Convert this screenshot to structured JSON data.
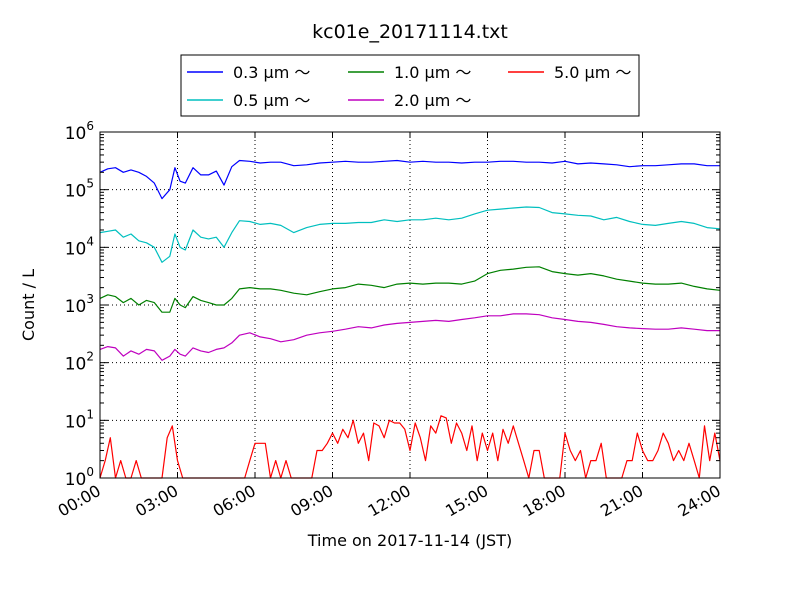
{
  "chart_data": {
    "type": "line",
    "title": "kc01e_20171114.txt",
    "xlabel": "Time on 2017-11-14 (JST)",
    "ylabel": "Count / L",
    "xlim": [
      0,
      24
    ],
    "ylim": [
      1,
      1000000
    ],
    "yscale": "log",
    "grid": true,
    "legend_position": "top, outside plot",
    "x_tick_labels": [
      "00:00",
      "03:00",
      "06:00",
      "09:00",
      "12:00",
      "15:00",
      "18:00",
      "21:00",
      "24:00"
    ],
    "y_tick_labels": [
      {
        "base": "10",
        "exp": "0"
      },
      {
        "base": "10",
        "exp": "1"
      },
      {
        "base": "10",
        "exp": "2"
      },
      {
        "base": "10",
        "exp": "3"
      },
      {
        "base": "10",
        "exp": "4"
      },
      {
        "base": "10",
        "exp": "5"
      },
      {
        "base": "10",
        "exp": "6"
      }
    ],
    "series": [
      {
        "name": "0.3 μm ～",
        "color": "#0000ff",
        "x": [
          0.0,
          0.3,
          0.6,
          0.9,
          1.2,
          1.5,
          1.8,
          2.1,
          2.4,
          2.7,
          2.9,
          3.1,
          3.3,
          3.6,
          3.9,
          4.2,
          4.5,
          4.8,
          5.1,
          5.4,
          5.8,
          6.2,
          6.6,
          7.0,
          7.5,
          8.0,
          8.5,
          9.0,
          9.5,
          10.0,
          10.5,
          11.0,
          11.5,
          12.0,
          12.5,
          13.0,
          13.5,
          14.0,
          14.5,
          15.0,
          15.5,
          16.0,
          16.5,
          17.0,
          17.5,
          18.0,
          18.5,
          19.0,
          19.5,
          20.0,
          20.5,
          21.0,
          21.5,
          22.0,
          22.5,
          23.0,
          23.5,
          24.0
        ],
        "y": [
          200000,
          230000,
          240000,
          200000,
          220000,
          200000,
          170000,
          130000,
          70000,
          100000,
          240000,
          140000,
          130000,
          240000,
          180000,
          180000,
          210000,
          120000,
          250000,
          320000,
          310000,
          290000,
          300000,
          300000,
          260000,
          270000,
          290000,
          300000,
          310000,
          300000,
          300000,
          310000,
          320000,
          300000,
          310000,
          300000,
          300000,
          290000,
          300000,
          300000,
          310000,
          310000,
          300000,
          300000,
          290000,
          310000,
          280000,
          290000,
          280000,
          270000,
          250000,
          260000,
          260000,
          270000,
          280000,
          280000,
          260000,
          260000
        ]
      },
      {
        "name": "0.5 μm ～",
        "color": "#00bfbf",
        "x": [
          0.0,
          0.3,
          0.6,
          0.9,
          1.2,
          1.5,
          1.8,
          2.1,
          2.4,
          2.7,
          2.9,
          3.1,
          3.3,
          3.6,
          3.9,
          4.2,
          4.5,
          4.8,
          5.1,
          5.4,
          5.8,
          6.2,
          6.6,
          7.0,
          7.5,
          8.0,
          8.5,
          9.0,
          9.5,
          10.0,
          10.5,
          11.0,
          11.5,
          12.0,
          12.5,
          13.0,
          13.5,
          14.0,
          14.5,
          15.0,
          15.5,
          16.0,
          16.5,
          17.0,
          17.5,
          18.0,
          18.5,
          19.0,
          19.5,
          20.0,
          20.5,
          21.0,
          21.5,
          22.0,
          22.5,
          23.0,
          23.5,
          24.0
        ],
        "y": [
          18000,
          19000,
          20000,
          15000,
          17000,
          13000,
          12000,
          10000,
          5500,
          7000,
          17000,
          10000,
          9000,
          20000,
          15000,
          14000,
          15000,
          10000,
          18000,
          29000,
          28000,
          25000,
          26000,
          24000,
          18000,
          22000,
          25000,
          26000,
          26000,
          27000,
          27000,
          30000,
          28000,
          30000,
          30000,
          32000,
          30000,
          32000,
          38000,
          44000,
          46000,
          48000,
          50000,
          49000,
          40000,
          38000,
          36000,
          35000,
          30000,
          33000,
          28000,
          25000,
          24000,
          26000,
          28000,
          26000,
          22000,
          21000
        ]
      },
      {
        "name": "1.0 μm ～",
        "color": "#008000",
        "x": [
          0.0,
          0.3,
          0.6,
          0.9,
          1.2,
          1.5,
          1.8,
          2.1,
          2.4,
          2.7,
          2.9,
          3.1,
          3.3,
          3.6,
          3.9,
          4.2,
          4.5,
          4.8,
          5.1,
          5.4,
          5.8,
          6.2,
          6.6,
          7.0,
          7.5,
          8.0,
          8.5,
          9.0,
          9.5,
          10.0,
          10.5,
          11.0,
          11.5,
          12.0,
          12.5,
          13.0,
          13.5,
          14.0,
          14.5,
          15.0,
          15.5,
          16.0,
          16.5,
          17.0,
          17.5,
          18.0,
          18.5,
          19.0,
          19.5,
          20.0,
          20.5,
          21.0,
          21.5,
          22.0,
          22.5,
          23.0,
          23.5,
          24.0
        ],
        "y": [
          1300,
          1500,
          1400,
          1100,
          1300,
          1000,
          1200,
          1100,
          750,
          750,
          1300,
          1000,
          900,
          1400,
          1200,
          1100,
          1000,
          1000,
          1300,
          1900,
          2000,
          1900,
          1900,
          1800,
          1600,
          1500,
          1700,
          1900,
          2000,
          2300,
          2200,
          2000,
          2300,
          2400,
          2300,
          2400,
          2400,
          2300,
          2600,
          3500,
          4000,
          4200,
          4500,
          4600,
          3800,
          3500,
          3300,
          3500,
          3200,
          2800,
          2600,
          2400,
          2300,
          2300,
          2400,
          2100,
          1900,
          1800
        ]
      },
      {
        "name": "2.0 μm ～",
        "color": "#bf00bf",
        "x": [
          0.0,
          0.3,
          0.6,
          0.9,
          1.2,
          1.5,
          1.8,
          2.1,
          2.4,
          2.7,
          2.9,
          3.1,
          3.3,
          3.6,
          3.9,
          4.2,
          4.5,
          4.8,
          5.1,
          5.4,
          5.8,
          6.2,
          6.6,
          7.0,
          7.5,
          8.0,
          8.5,
          9.0,
          9.5,
          10.0,
          10.5,
          11.0,
          11.5,
          12.0,
          12.5,
          13.0,
          13.5,
          14.0,
          14.5,
          15.0,
          15.5,
          16.0,
          16.5,
          17.0,
          17.5,
          18.0,
          18.5,
          19.0,
          19.5,
          20.0,
          20.5,
          21.0,
          21.5,
          22.0,
          22.5,
          23.0,
          23.5,
          24.0
        ],
        "y": [
          170,
          190,
          180,
          130,
          160,
          140,
          170,
          160,
          110,
          130,
          170,
          140,
          130,
          180,
          160,
          150,
          170,
          180,
          220,
          300,
          330,
          280,
          260,
          230,
          250,
          300,
          330,
          350,
          380,
          420,
          400,
          450,
          480,
          500,
          520,
          540,
          520,
          560,
          600,
          650,
          650,
          700,
          700,
          680,
          600,
          560,
          520,
          500,
          460,
          420,
          400,
          390,
          380,
          380,
          400,
          380,
          360,
          360
        ]
      },
      {
        "name": "5.0 μm ～",
        "color": "#ff0000",
        "x": [
          0.0,
          0.2,
          0.4,
          0.6,
          0.8,
          1.0,
          1.2,
          1.4,
          1.6,
          1.8,
          2.0,
          2.2,
          2.4,
          2.6,
          2.8,
          3.0,
          3.2,
          3.4,
          3.6,
          3.8,
          4.0,
          4.2,
          4.4,
          4.6,
          4.8,
          5.0,
          5.2,
          5.4,
          5.6,
          5.8,
          6.0,
          6.2,
          6.4,
          6.6,
          6.8,
          7.0,
          7.2,
          7.4,
          7.6,
          7.8,
          8.0,
          8.2,
          8.4,
          8.6,
          8.8,
          9.0,
          9.2,
          9.4,
          9.6,
          9.8,
          10.0,
          10.2,
          10.4,
          10.6,
          10.8,
          11.0,
          11.2,
          11.4,
          11.6,
          11.8,
          12.0,
          12.2,
          12.4,
          12.6,
          12.8,
          13.0,
          13.2,
          13.4,
          13.6,
          13.8,
          14.0,
          14.2,
          14.4,
          14.6,
          14.8,
          15.0,
          15.2,
          15.4,
          15.6,
          15.8,
          16.0,
          16.2,
          16.4,
          16.6,
          16.8,
          17.0,
          17.2,
          17.4,
          17.6,
          17.8,
          18.0,
          18.2,
          18.4,
          18.6,
          18.8,
          19.0,
          19.2,
          19.4,
          19.6,
          19.8,
          20.0,
          20.2,
          20.4,
          20.6,
          20.8,
          21.0,
          21.2,
          21.4,
          21.6,
          21.8,
          22.0,
          22.2,
          22.4,
          22.6,
          22.8,
          23.0,
          23.2,
          23.4,
          23.6,
          23.8,
          24.0
        ],
        "y": [
          1,
          2,
          5,
          1,
          2,
          1,
          1,
          2,
          1,
          1,
          1,
          1,
          1,
          5,
          8,
          2,
          1,
          1,
          1,
          1,
          1,
          1,
          1,
          1,
          1,
          1,
          1,
          1,
          1,
          2,
          4,
          4,
          4,
          1,
          2,
          1,
          2,
          1,
          1,
          1,
          1,
          1,
          3,
          3,
          4,
          6,
          4,
          7,
          5,
          10,
          4,
          6,
          2,
          9,
          8,
          5,
          10,
          9,
          9,
          7,
          3,
          9,
          5,
          2,
          8,
          6,
          12,
          11,
          4,
          9,
          6,
          3,
          8,
          2,
          6,
          3,
          6,
          2,
          7,
          4,
          8,
          4,
          2,
          1,
          3,
          3,
          1,
          1,
          1,
          1,
          6,
          3,
          2,
          3,
          1,
          2,
          2,
          4,
          1,
          1,
          1,
          1,
          2,
          2,
          6,
          3,
          2,
          2,
          3,
          6,
          4,
          2,
          3,
          2,
          4,
          2,
          1,
          8,
          2,
          6,
          2
        ]
      }
    ]
  }
}
